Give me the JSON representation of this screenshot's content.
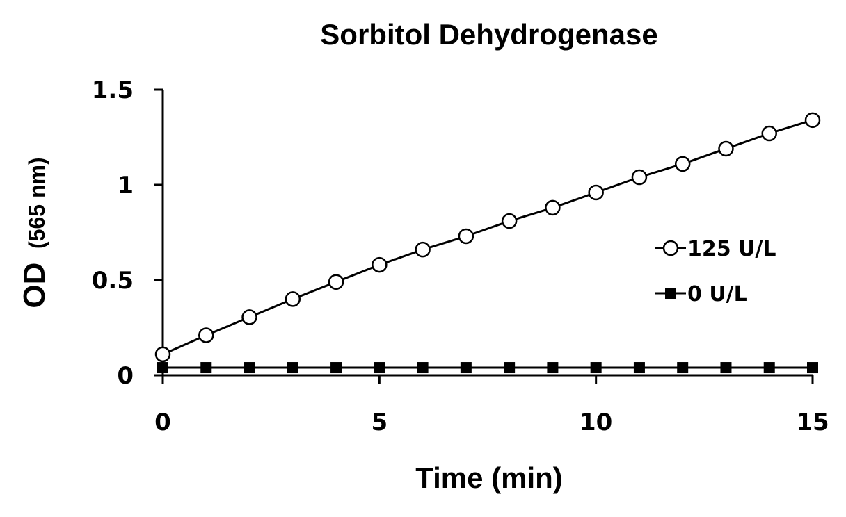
{
  "chart_data": {
    "type": "line",
    "title": "Sorbitol Dehydrogenase",
    "xlabel": "Time (min)",
    "ylabel_main": "OD",
    "ylabel_unit": "(565 nm)",
    "xlim": [
      0,
      15
    ],
    "ylim": [
      0,
      1.5
    ],
    "x_ticks": [
      0,
      5,
      10,
      15
    ],
    "x_tick_labels": [
      "0",
      "5",
      "10",
      "15"
    ],
    "y_ticks": [
      0,
      0.5,
      1,
      1.5
    ],
    "y_tick_labels": [
      "0",
      "0.5",
      "1",
      "1.5"
    ],
    "grid": false,
    "legend_position": "right-middle",
    "x": [
      0,
      1,
      2,
      3,
      4,
      5,
      6,
      7,
      8,
      9,
      10,
      11,
      12,
      13,
      14,
      15
    ],
    "series": [
      {
        "name": "125 U/L",
        "marker": "open-circle",
        "color": "#000000",
        "values": [
          0.11,
          0.21,
          0.305,
          0.4,
          0.49,
          0.58,
          0.66,
          0.73,
          0.81,
          0.88,
          0.96,
          1.04,
          1.11,
          1.19,
          1.27,
          1.34
        ]
      },
      {
        "name": "0 U/L",
        "marker": "filled-square",
        "color": "#000000",
        "values": [
          0.04,
          0.04,
          0.04,
          0.04,
          0.04,
          0.04,
          0.04,
          0.04,
          0.04,
          0.04,
          0.04,
          0.04,
          0.04,
          0.04,
          0.04,
          0.04
        ]
      }
    ]
  }
}
